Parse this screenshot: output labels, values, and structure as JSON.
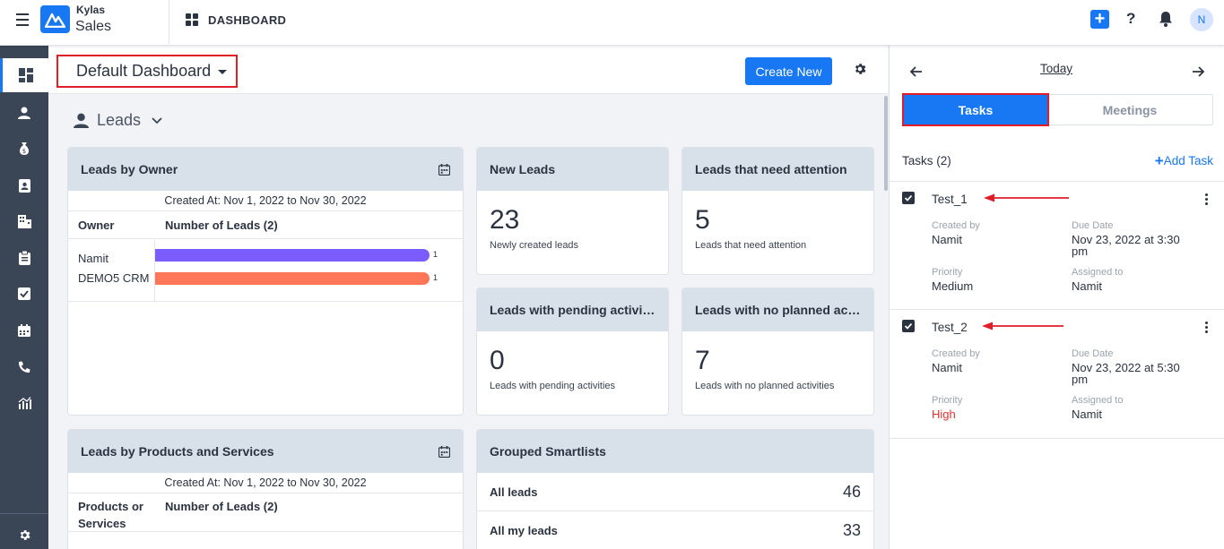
{
  "app": {
    "brand_top": "Kylas",
    "brand_bottom": "Sales",
    "page_title": "DASHBOARD",
    "avatar_initial": "N",
    "help_glyph": "?",
    "add_glyph": "+"
  },
  "sidebar": {
    "items": [
      {
        "icon": "dashboard-icon",
        "active": true
      },
      {
        "icon": "user-icon"
      },
      {
        "icon": "money-bag-icon"
      },
      {
        "icon": "contact-card-icon"
      },
      {
        "icon": "building-icon"
      },
      {
        "icon": "clipboard-icon"
      },
      {
        "icon": "task-check-icon"
      },
      {
        "icon": "calendar-icon"
      },
      {
        "icon": "phone-icon"
      },
      {
        "icon": "report-chart-icon"
      }
    ],
    "bottom_icon": "settings-gear-icon"
  },
  "toolbar": {
    "dashboard_name": "Default Dashboard",
    "create_new_label": "Create New"
  },
  "section": {
    "title": "Leads"
  },
  "leads_by_owner": {
    "title": "Leads by Owner",
    "created_at": "Created At: Nov 1, 2022 to Nov 30, 2022",
    "col_owner": "Owner",
    "col_count": "Number of Leads (2)",
    "chart_data": {
      "type": "bar",
      "orientation": "horizontal",
      "categories": [
        "Namit",
        "DEMO5 CRM"
      ],
      "values": [
        1,
        1
      ],
      "colors": [
        "#7b5cff",
        "#ff7659"
      ],
      "xlim": [
        0,
        1
      ]
    }
  },
  "stats": [
    {
      "title": "New Leads",
      "value": "23",
      "sub": "Newly created leads"
    },
    {
      "title": "Leads that need attention",
      "value": "5",
      "sub": "Leads that need attention"
    },
    {
      "title": "Leads with pending activiti...",
      "value": "0",
      "sub": "Leads with pending activities"
    },
    {
      "title": "Leads with no planned acti...",
      "value": "7",
      "sub": "Leads with no planned activities"
    }
  ],
  "leads_by_products": {
    "title": "Leads by Products and Services",
    "created_at": "Created At: Nov 1, 2022 to Nov 30, 2022",
    "col_products_line1": "Products or",
    "col_products_line2": "Services",
    "col_count": "Number of Leads (2)"
  },
  "smartlists": {
    "title": "Grouped Smartlists",
    "rows": [
      {
        "label": "All leads",
        "count": "46"
      },
      {
        "label": "All my leads",
        "count": "33"
      }
    ]
  },
  "panel": {
    "date_label": "Today",
    "tab_tasks": "Tasks",
    "tab_meetings": "Meetings",
    "tasks_count": "Tasks (2)",
    "add_task": "Add Task",
    "tasks": [
      {
        "name": "Test_1",
        "created_by_label": "Created by",
        "created_by": "Namit",
        "due_label": "Due Date",
        "due_line1": "Nov 23, 2022 at 3:30",
        "due_line2": "pm",
        "priority_label": "Priority",
        "priority": "Medium",
        "assigned_label": "Assigned to",
        "assigned": "Namit"
      },
      {
        "name": "Test_2",
        "created_by_label": "Created by",
        "created_by": "Namit",
        "due_label": "Due Date",
        "due_line1": "Nov 23, 2022 at 5:30",
        "due_line2": "pm",
        "priority_label": "Priority",
        "priority": "High",
        "assigned_label": "Assigned to",
        "assigned": "Namit"
      }
    ]
  },
  "colors": {
    "accent": "#1877f2",
    "highlight_border": "#e11d2a",
    "sidebar_bg": "#3a4556",
    "priority_high": "#e03131"
  }
}
